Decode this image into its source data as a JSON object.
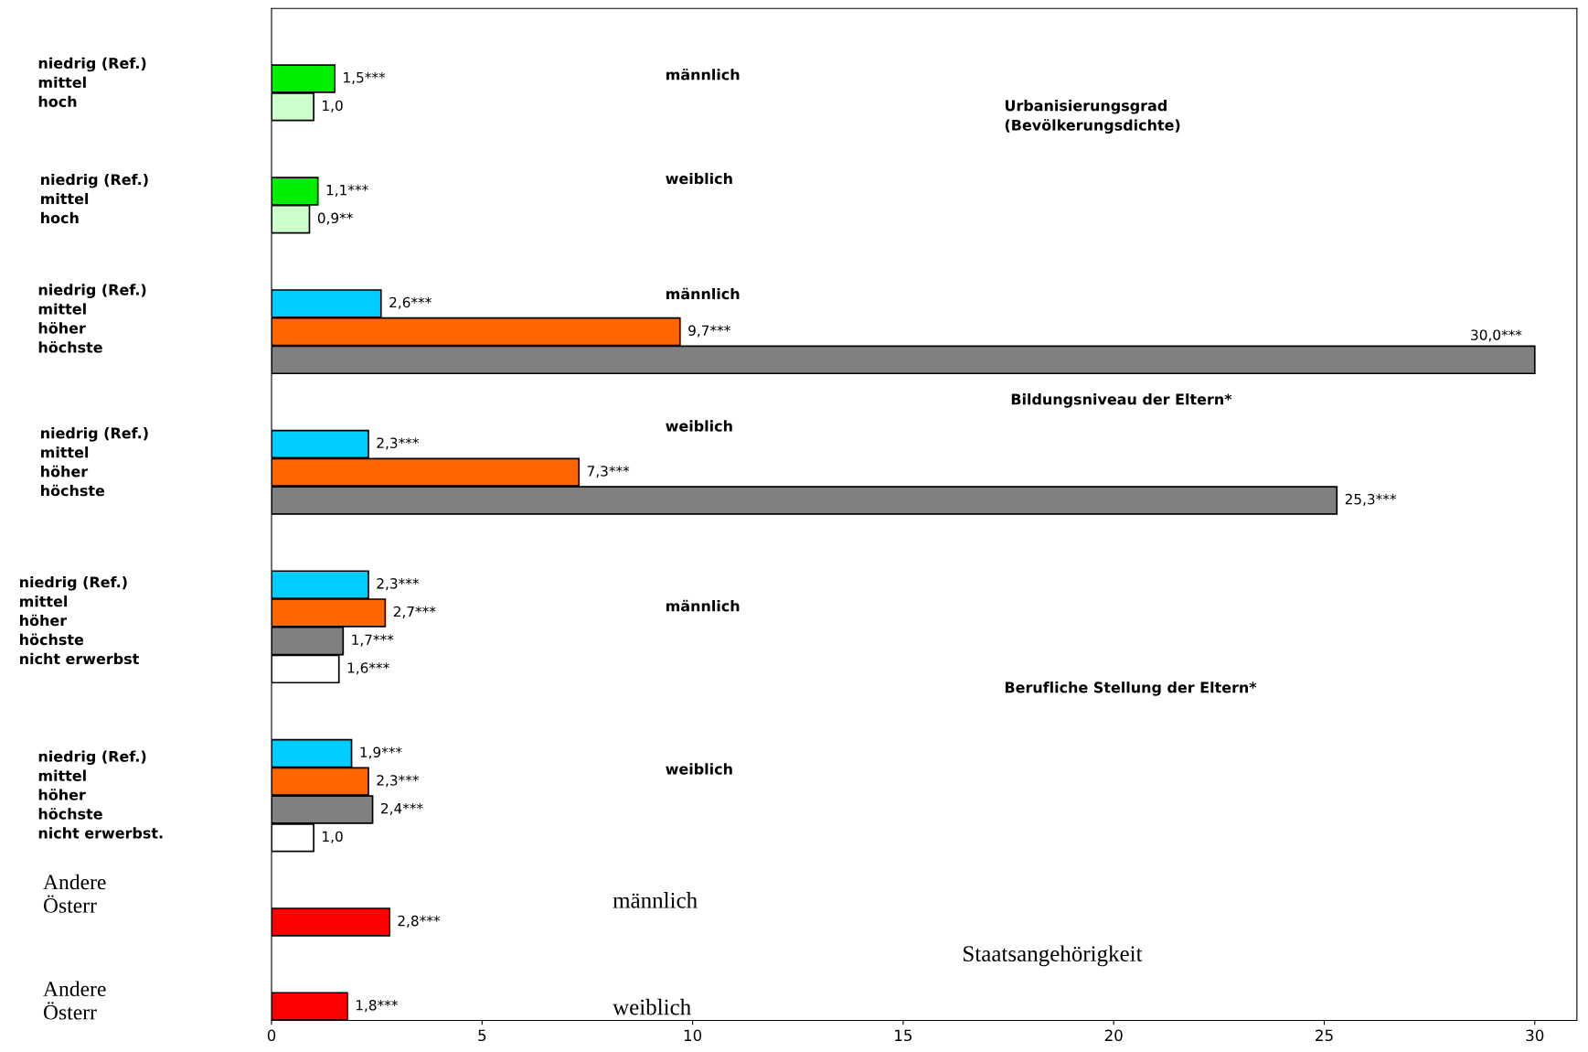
{
  "chart_data": {
    "type": "bar",
    "orientation": "horizontal",
    "categories": [
      null,
      null,
      null,
      null,
      null,
      null,
      null,
      null,
      null,
      null,
      null,
      null,
      null,
      null,
      null,
      null,
      null,
      null,
      null,
      null,
      null,
      null,
      null,
      null,
      null,
      null,
      null,
      null,
      null,
      null,
      null,
      null,
      null,
      null,
      null,
      null
    ],
    "values": [
      null,
      null,
      1.5,
      1.0,
      null,
      null,
      1.1,
      0.9,
      null,
      null,
      2.6,
      9.7,
      30.0,
      null,
      null,
      2.3,
      7.3,
      25.3,
      null,
      null,
      2.3,
      2.7,
      1.7,
      1.6,
      null,
      null,
      1.9,
      2.3,
      2.4,
      1.0,
      null,
      null,
      2.8,
      null,
      null,
      1.8
    ],
    "colors": [
      null,
      null,
      "#00ee00",
      "#ccffcc",
      null,
      null,
      "#00ee00",
      "#ccffcc",
      null,
      null,
      "#00ccff",
      "#ff6600",
      "#808080",
      null,
      null,
      "#00ccff",
      "#ff6600",
      "#808080",
      null,
      null,
      "#00ccff",
      "#ff6600",
      "#808080",
      "#ffffff",
      null,
      null,
      "#00ccff",
      "#ff6600",
      "#808080",
      "#ffffff",
      null,
      null,
      "#ff0000",
      null,
      null,
      "#ff0000"
    ],
    "value_labels": [
      null,
      null,
      "1,5***",
      "1,0",
      null,
      null,
      "1,1***",
      "0,9**",
      null,
      null,
      "2,6***",
      "9,7***",
      "30,0***",
      null,
      null,
      "2,3***",
      "7,3***",
      "25,3***",
      null,
      null,
      "2,3***",
      "2,7***",
      "1,7***",
      "1,6***",
      null,
      null,
      "1,9***",
      "2,3***",
      "2,4***",
      "1,0",
      null,
      null,
      "2,8***",
      null,
      null,
      "1,8***"
    ],
    "xlim": [
      0,
      31
    ],
    "xticks": [
      0,
      5,
      10,
      15,
      20,
      25,
      30
    ],
    "tick_labels": "x",
    "grid": false,
    "legend": false,
    "annotations": [
      "niedrig (Ref.)\nmittel\nhoch",
      "niedrig (Ref.)\nmittel\nhoch",
      "niedrig (Ref.)\nmittel\nhöher\nhöchste",
      "niedrig (Ref.)\nmittel\nhöher\nhöchste",
      "niedrig (Ref.)\nmittel\nhöher\nhöchste\nnicht erwerbst",
      "niedrig (Ref.)\nmittel\nhöher\nhöchste\nnicht erwerbst.",
      "Andere\nÖsterr",
      "Andere\nÖsterr",
      "männlich",
      "weiblich",
      "männlich",
      "weiblich",
      "männlich",
      "weiblich",
      "männlich",
      "weiblich",
      "Urbanisierungsgrad\n(Bevölkerungsdichte)",
      "Bildungsniveau der Eltern*",
      "Berufliche Stellung der Eltern*",
      "Staatsangehörigkeit"
    ]
  }
}
